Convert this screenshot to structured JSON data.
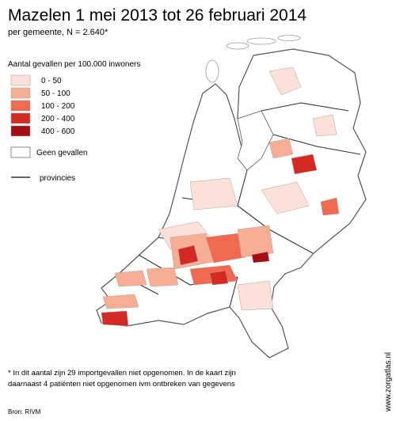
{
  "title": "Mazelen 1 mei 2013 tot 26 februari 2014",
  "subtitle": "per gemeente, N = 2.640*",
  "legend": {
    "title": "Aantal gevallen per 100.000 inwoners",
    "classes": [
      {
        "label": "0 -  50",
        "color": "#fbe1d7"
      },
      {
        "label": "50 - 100",
        "color": "#f7ae95"
      },
      {
        "label": "100 - 200",
        "color": "#ef6a4e"
      },
      {
        "label": "200 - 400",
        "color": "#d42a23"
      },
      {
        "label": "400 - 600",
        "color": "#a30e12"
      }
    ],
    "none": "Geen gevallen",
    "provinces": "provincies"
  },
  "footnote": [
    "* In dit aantal zijn 29 importgevallen niet opgenomen. In de kaart zijn",
    "daarnaast 4 patiënten niet opgenomen ivm ontbreken van gegevens"
  ],
  "source": "Bron: RIVM",
  "watermark": "www.zorgatlas.nl"
}
